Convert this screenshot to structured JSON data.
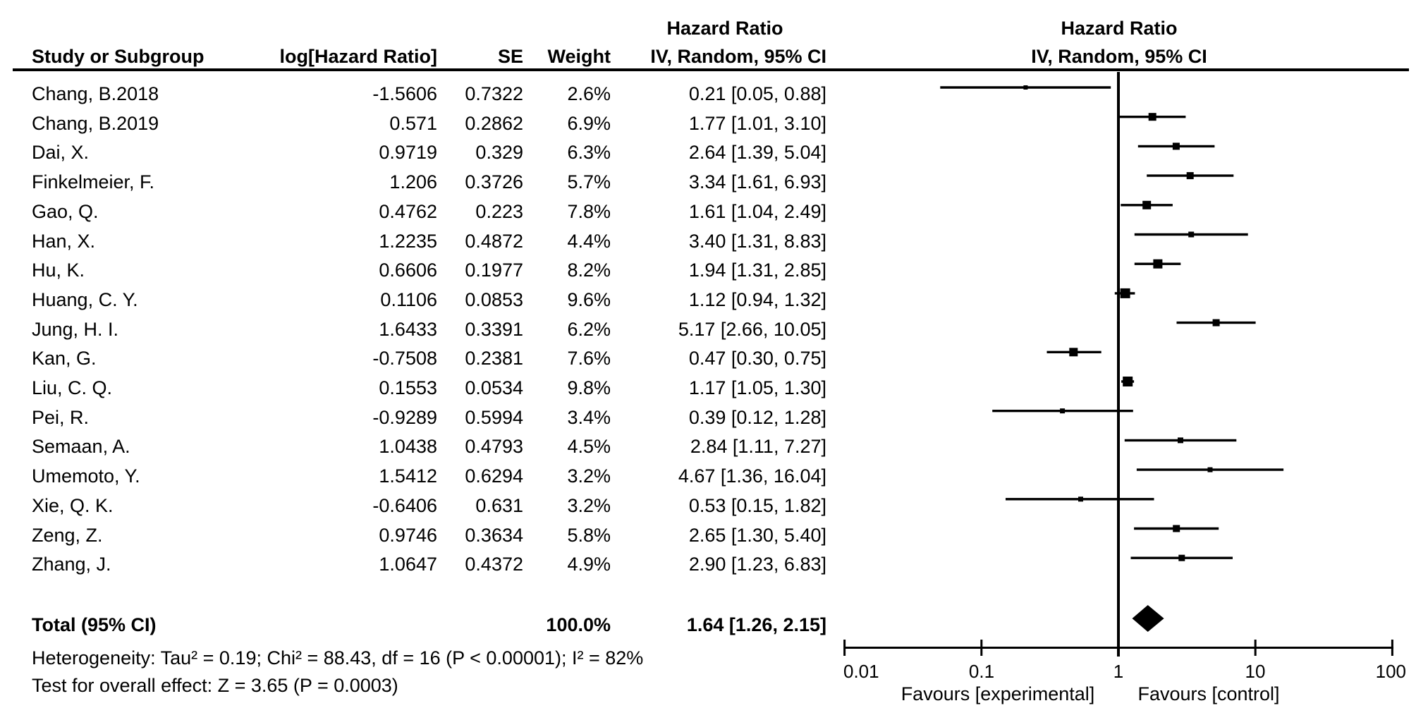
{
  "table": {
    "headers": {
      "hazard_ratio": "Hazard Ratio",
      "study": "Study or Subgroup",
      "log_hr": "log[Hazard Ratio]",
      "se": "SE",
      "weight": "Weight",
      "ci": "IV, Random, 95% CI",
      "hazard_ratio_plot": "Hazard Ratio",
      "ci_plot": "IV, Random, 95% CI"
    }
  },
  "chart_data": {
    "type": "scatter",
    "subtype": "forest-plot",
    "effect_measure": "Hazard Ratio",
    "model": "IV, Random, 95% CI",
    "x_scale": "log10",
    "x_range": [
      0.01,
      100
    ],
    "grid": false,
    "studies": [
      {
        "name": "Chang, B.2018",
        "log_hr": "-1.5606",
        "se": "0.7322",
        "weight": "2.6%",
        "weight_pct": 2.6,
        "ci_text": "0.21 [0.05, 0.88]",
        "hr": 0.21,
        "ci_low": 0.05,
        "ci_high": 0.88
      },
      {
        "name": "Chang, B.2019",
        "log_hr": "0.571",
        "se": "0.2862",
        "weight": "6.9%",
        "weight_pct": 6.9,
        "ci_text": "1.77 [1.01, 3.10]",
        "hr": 1.77,
        "ci_low": 1.01,
        "ci_high": 3.1
      },
      {
        "name": "Dai, X.",
        "log_hr": "0.9719",
        "se": "0.329",
        "weight": "6.3%",
        "weight_pct": 6.3,
        "ci_text": "2.64 [1.39, 5.04]",
        "hr": 2.64,
        "ci_low": 1.39,
        "ci_high": 5.04
      },
      {
        "name": "Finkelmeier, F.",
        "log_hr": "1.206",
        "se": "0.3726",
        "weight": "5.7%",
        "weight_pct": 5.7,
        "ci_text": "3.34 [1.61, 6.93]",
        "hr": 3.34,
        "ci_low": 1.61,
        "ci_high": 6.93
      },
      {
        "name": "Gao, Q.",
        "log_hr": "0.4762",
        "se": "0.223",
        "weight": "7.8%",
        "weight_pct": 7.8,
        "ci_text": "1.61 [1.04, 2.49]",
        "hr": 1.61,
        "ci_low": 1.04,
        "ci_high": 2.49
      },
      {
        "name": "Han, X.",
        "log_hr": "1.2235",
        "se": "0.4872",
        "weight": "4.4%",
        "weight_pct": 4.4,
        "ci_text": "3.40 [1.31, 8.83]",
        "hr": 3.4,
        "ci_low": 1.31,
        "ci_high": 8.83
      },
      {
        "name": "Hu, K.",
        "log_hr": "0.6606",
        "se": "0.1977",
        "weight": "8.2%",
        "weight_pct": 8.2,
        "ci_text": "1.94 [1.31, 2.85]",
        "hr": 1.94,
        "ci_low": 1.31,
        "ci_high": 2.85
      },
      {
        "name": "Huang, C. Y.",
        "log_hr": "0.1106",
        "se": "0.0853",
        "weight": "9.6%",
        "weight_pct": 9.6,
        "ci_text": "1.12 [0.94, 1.32]",
        "hr": 1.12,
        "ci_low": 0.94,
        "ci_high": 1.32
      },
      {
        "name": "Jung, H. I.",
        "log_hr": "1.6433",
        "se": "0.3391",
        "weight": "6.2%",
        "weight_pct": 6.2,
        "ci_text": "5.17 [2.66, 10.05]",
        "hr": 5.17,
        "ci_low": 2.66,
        "ci_high": 10.05
      },
      {
        "name": "Kan, G.",
        "log_hr": "-0.7508",
        "se": "0.2381",
        "weight": "7.6%",
        "weight_pct": 7.6,
        "ci_text": "0.47 [0.30, 0.75]",
        "hr": 0.47,
        "ci_low": 0.3,
        "ci_high": 0.75
      },
      {
        "name": "Liu, C. Q.",
        "log_hr": "0.1553",
        "se": "0.0534",
        "weight": "9.8%",
        "weight_pct": 9.8,
        "ci_text": "1.17 [1.05, 1.30]",
        "hr": 1.17,
        "ci_low": 1.05,
        "ci_high": 1.3
      },
      {
        "name": "Pei, R.",
        "log_hr": "-0.9289",
        "se": "0.5994",
        "weight": "3.4%",
        "weight_pct": 3.4,
        "ci_text": "0.39 [0.12, 1.28]",
        "hr": 0.39,
        "ci_low": 0.12,
        "ci_high": 1.28
      },
      {
        "name": "Semaan, A.",
        "log_hr": "1.0438",
        "se": "0.4793",
        "weight": "4.5%",
        "weight_pct": 4.5,
        "ci_text": "2.84 [1.11, 7.27]",
        "hr": 2.84,
        "ci_low": 1.11,
        "ci_high": 7.27
      },
      {
        "name": "Umemoto, Y.",
        "log_hr": "1.5412",
        "se": "0.6294",
        "weight": "3.2%",
        "weight_pct": 3.2,
        "ci_text": "4.67 [1.36, 16.04]",
        "hr": 4.67,
        "ci_low": 1.36,
        "ci_high": 16.04
      },
      {
        "name": "Xie, Q. K.",
        "log_hr": "-0.6406",
        "se": "0.631",
        "weight": "3.2%",
        "weight_pct": 3.2,
        "ci_text": "0.53 [0.15, 1.82]",
        "hr": 0.53,
        "ci_low": 0.15,
        "ci_high": 1.82
      },
      {
        "name": "Zeng, Z.",
        "log_hr": "0.9746",
        "se": "0.3634",
        "weight": "5.8%",
        "weight_pct": 5.8,
        "ci_text": "2.65 [1.30, 5.40]",
        "hr": 2.65,
        "ci_low": 1.3,
        "ci_high": 5.4
      },
      {
        "name": "Zhang, J.",
        "log_hr": "1.0647",
        "se": "0.4372",
        "weight": "4.9%",
        "weight_pct": 4.9,
        "ci_text": "2.90 [1.23, 6.83]",
        "hr": 2.9,
        "ci_low": 1.23,
        "ci_high": 6.83
      }
    ],
    "total": {
      "label": "Total (95% CI)",
      "weight": "100.0%",
      "ci_text": "1.64 [1.26, 2.15]",
      "hr": 1.64,
      "ci_low": 1.26,
      "ci_high": 2.15
    },
    "footnotes": {
      "heterogeneity": "Heterogeneity: Tau² = 0.19; Chi² = 88.43, df = 16 (P < 0.00001); I² = 82%",
      "overall_effect": "Test for overall effect: Z = 3.65 (P = 0.0003)"
    },
    "axis": {
      "ticks": [
        {
          "label": "0.01",
          "value": 0.01
        },
        {
          "label": "0.1",
          "value": 0.1
        },
        {
          "label": "1",
          "value": 1
        },
        {
          "label": "10",
          "value": 10
        },
        {
          "label": "100",
          "value": 100
        }
      ],
      "favours_left": "Favours [experimental]",
      "favours_right": "Favours [control]"
    }
  }
}
